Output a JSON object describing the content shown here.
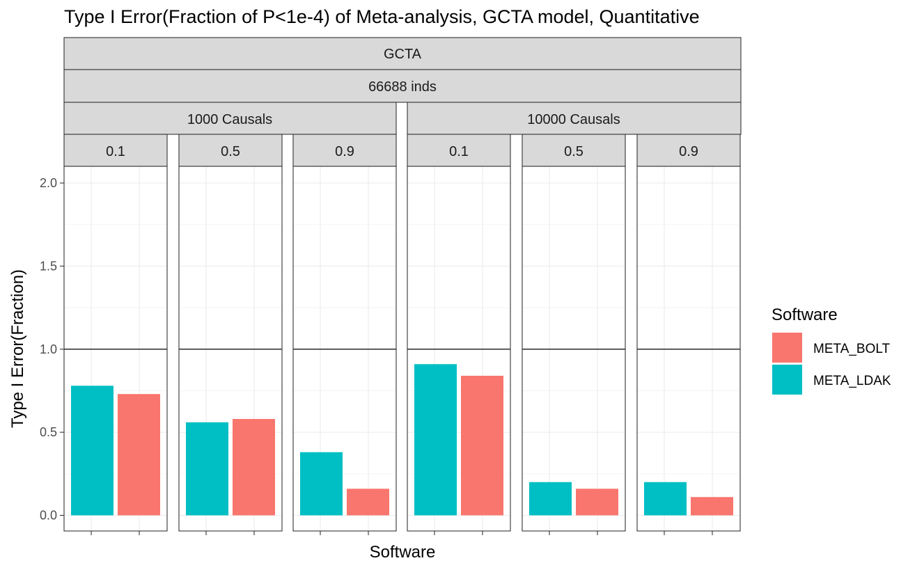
{
  "chart_data": {
    "type": "bar",
    "title": "Type I Error(Fraction of P<1e-4) of Meta-analysis, GCTA model, Quantitative",
    "xlabel": "Software",
    "ylabel": "Type I Error(Fraction)",
    "ylim": [
      0,
      2.0
    ],
    "yticks": [
      "0.0",
      "0.5",
      "1.0",
      "1.5",
      "2.0"
    ],
    "reference_line": 1.0,
    "grid": true,
    "facet_strips": {
      "level1": "GCTA",
      "level2": "66688 inds",
      "causal_groups": [
        "1000 Causals",
        "10000 Causals"
      ]
    },
    "legend": {
      "title": "Software",
      "position": "right",
      "items": [
        {
          "name": "META_BOLT",
          "color": "#F8766D"
        },
        {
          "name": "META_LDAK",
          "color": "#00BFC4"
        }
      ]
    },
    "panels": [
      {
        "causal": "1000 Causals",
        "label": "0.1",
        "bars": [
          {
            "series": "META_LDAK",
            "value": 0.78
          },
          {
            "series": "META_BOLT",
            "value": 0.73
          }
        ]
      },
      {
        "causal": "1000 Causals",
        "label": "0.5",
        "bars": [
          {
            "series": "META_LDAK",
            "value": 0.56
          },
          {
            "series": "META_BOLT",
            "value": 0.58
          }
        ]
      },
      {
        "causal": "1000 Causals",
        "label": "0.9",
        "bars": [
          {
            "series": "META_LDAK",
            "value": 0.38
          },
          {
            "series": "META_BOLT",
            "value": 0.16
          }
        ]
      },
      {
        "causal": "10000 Causals",
        "label": "0.1",
        "bars": [
          {
            "series": "META_LDAK",
            "value": 0.91
          },
          {
            "series": "META_BOLT",
            "value": 0.84
          }
        ]
      },
      {
        "causal": "10000 Causals",
        "label": "0.5",
        "bars": [
          {
            "series": "META_LDAK",
            "value": 0.2
          },
          {
            "series": "META_BOLT",
            "value": 0.16
          }
        ]
      },
      {
        "causal": "10000 Causals",
        "label": "0.9",
        "bars": [
          {
            "series": "META_LDAK",
            "value": 0.2
          },
          {
            "series": "META_BOLT",
            "value": 0.11
          }
        ]
      }
    ]
  }
}
